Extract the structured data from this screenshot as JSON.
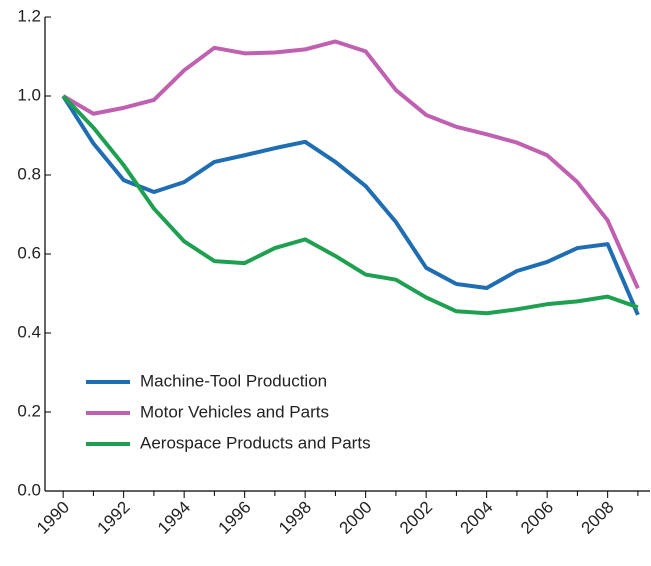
{
  "chart_data": {
    "type": "line",
    "x": [
      1990,
      1991,
      1992,
      1993,
      1994,
      1995,
      1996,
      1997,
      1998,
      1999,
      2000,
      2001,
      2002,
      2003,
      2004,
      2005,
      2006,
      2007,
      2008,
      2009
    ],
    "series": [
      {
        "name": "Machine-Tool Production",
        "color": "#1f6db3",
        "values": [
          1.0,
          0.88,
          0.787,
          0.757,
          0.782,
          0.833,
          0.85,
          0.868,
          0.884,
          0.833,
          0.772,
          0.681,
          0.565,
          0.524,
          0.514,
          0.557,
          0.58,
          0.615,
          0.625,
          0.446
        ]
      },
      {
        "name": "Motor Vehicles and Parts",
        "color": "#c060b0",
        "values": [
          1.0,
          0.955,
          0.97,
          0.99,
          1.065,
          1.122,
          1.108,
          1.11,
          1.118,
          1.138,
          1.113,
          1.015,
          0.952,
          0.922,
          0.903,
          0.882,
          0.85,
          0.782,
          0.685,
          0.513
        ]
      },
      {
        "name": "Aerospace Products and Parts",
        "color": "#1fa050",
        "values": [
          1.0,
          0.92,
          0.825,
          0.715,
          0.632,
          0.582,
          0.577,
          0.615,
          0.637,
          0.595,
          0.548,
          0.535,
          0.49,
          0.455,
          0.45,
          0.46,
          0.473,
          0.48,
          0.492,
          0.465
        ]
      }
    ],
    "xlim": [
      1989.4,
      2009.4
    ],
    "xticks": [
      1990,
      1992,
      1994,
      1996,
      1998,
      2000,
      2002,
      2004,
      2006,
      2008
    ],
    "xminorticks": [
      1991,
      1993,
      1995,
      1997,
      1999,
      2001,
      2003,
      2005,
      2007,
      2009
    ],
    "ylim": [
      0,
      1.2
    ],
    "yticks": [
      {
        "value": 0,
        "label": "0.0"
      },
      0.2,
      0.4,
      0.6,
      0.8,
      {
        "value": 1,
        "label": "1.0"
      },
      1.2
    ],
    "legend": "lower left"
  }
}
